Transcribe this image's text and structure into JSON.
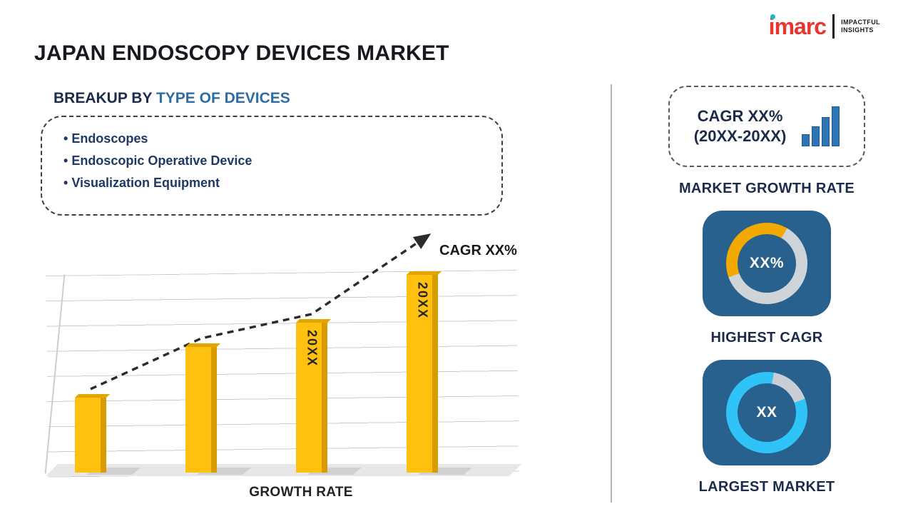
{
  "title": "JAPAN ENDOSCOPY DEVICES MARKET",
  "logo": {
    "brand": "imarc",
    "tagline1": "IMPACTFUL",
    "tagline2": "INSIGHTS"
  },
  "breakup": {
    "heading_prefix": "BREAKUP BY ",
    "heading_highlight": "TYPE OF DEVICES",
    "items": [
      "Endoscopes",
      "Endoscopic Operative Device",
      "Visualization Equipment"
    ]
  },
  "chart_data": {
    "type": "bar",
    "categories": [
      "",
      "",
      "20XX",
      "20XX"
    ],
    "values": [
      25,
      42,
      50,
      66
    ],
    "bar_labels": [
      "",
      "",
      "20XX",
      "20XX"
    ],
    "bar_color": "#ffc010",
    "bar_side_color": "#d99c00",
    "trend_label": "CAGR XX%",
    "trend_style": "dashed ascending arrow",
    "xlabel": "GROWTH RATE",
    "ylabel": "",
    "ylim": [
      0,
      70
    ],
    "grid": true
  },
  "right_panel": {
    "card_bg": "#28618e",
    "cagr_card": {
      "line1": "CAGR XX%",
      "line2": "(20XX-20XX)"
    },
    "market_growth_caption": "MARKET GROWTH RATE",
    "highest_cagr": {
      "value": "XX%",
      "caption": "HIGHEST CAGR",
      "donut": {
        "from": 250,
        "sweep": 140,
        "color1": "#f2a900",
        "color2": "#cfd4d9"
      }
    },
    "largest_market": {
      "value": "XX",
      "caption": "LARGEST MARKET",
      "donut": {
        "from": 10,
        "sweep": 60,
        "color1": "#c9ced4",
        "color2": "#2fc3f7"
      }
    }
  },
  "colors": {
    "title_text": "#17191f",
    "heading_dark": "#1c2b4a",
    "heading_accent": "#2e6da4",
    "list_text": "#1f3864",
    "brand_red": "#e8352e",
    "brand_teal": "#19b9c3",
    "card_bg": "#28618e",
    "donut_yellow": "#f2a900",
    "donut_cyan": "#2fc3f7",
    "donut_track": "#cfd4d9"
  }
}
